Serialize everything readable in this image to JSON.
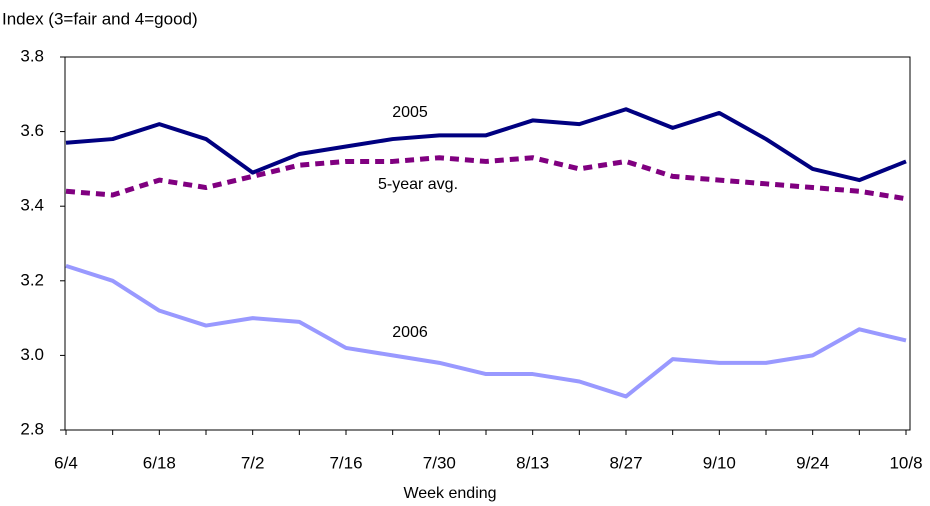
{
  "chart_data": {
    "type": "line",
    "y_axis_label": "Index (3=fair and 4=good)",
    "x_axis_label": "Week ending",
    "categories": [
      "6/4",
      null,
      "6/18",
      null,
      "7/2",
      null,
      "7/16",
      null,
      "7/30",
      null,
      "8/13",
      null,
      "8/27",
      null,
      "9/10",
      null,
      "9/24",
      null,
      "10/8"
    ],
    "series": [
      {
        "name": "2005",
        "color": "#000080",
        "dash": false,
        "values": [
          3.57,
          3.58,
          3.62,
          3.58,
          3.49,
          3.54,
          3.56,
          3.58,
          3.59,
          3.59,
          3.63,
          3.62,
          3.66,
          3.61,
          3.65,
          3.58,
          3.5,
          3.47,
          3.52
        ]
      },
      {
        "name": "5-year avg.",
        "color": "#800080",
        "dash": true,
        "values": [
          3.44,
          3.43,
          3.47,
          3.45,
          3.48,
          3.51,
          3.52,
          3.52,
          3.53,
          3.52,
          3.53,
          3.5,
          3.52,
          3.48,
          3.47,
          3.46,
          3.45,
          3.44,
          3.42
        ]
      },
      {
        "name": "2006",
        "color": "#9999ff",
        "dash": false,
        "values": [
          3.24,
          3.2,
          3.12,
          3.08,
          3.1,
          3.09,
          3.02,
          3.0,
          2.98,
          2.95,
          2.95,
          2.93,
          2.89,
          2.99,
          2.98,
          2.98,
          3.0,
          3.07,
          3.04
        ]
      }
    ],
    "ylim": [
      2.8,
      3.8
    ],
    "yticks": [
      2.8,
      {
        "value": 3,
        "label": "3.0"
      },
      3.2,
      3.4,
      3.6,
      3.8
    ],
    "grid": false
  }
}
